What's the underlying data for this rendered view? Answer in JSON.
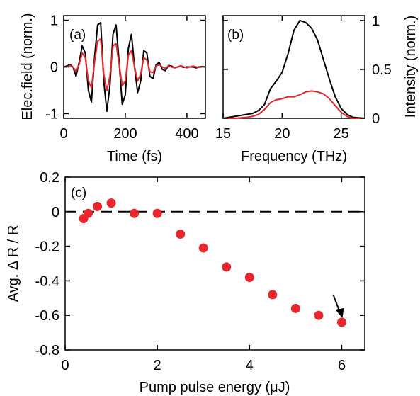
{
  "colors": {
    "black": "#000000",
    "red": "#e8262b",
    "marker": "#e8262b"
  },
  "chart_data": [
    {
      "panel": "(a)",
      "type": "line",
      "xlabel": "Time (fs)",
      "ylabel": "Elec.field (norm.)",
      "xlim": [
        0,
        460
      ],
      "ylim": [
        -1.1,
        1.1
      ],
      "xticks": [
        "0",
        "200",
        "400"
      ],
      "xtick_values": [
        0,
        200,
        400
      ],
      "yticks": [
        "1",
        "0",
        "-1"
      ],
      "ytick_values": [
        1,
        0,
        -1
      ],
      "grid": false,
      "series": [
        {
          "color": "#000000",
          "x": [
            0,
            10,
            20,
            30,
            40,
            50,
            60,
            70,
            80,
            90,
            100,
            110,
            120,
            130,
            140,
            150,
            160,
            170,
            180,
            190,
            200,
            210,
            220,
            230,
            240,
            250,
            260,
            270,
            280,
            290,
            300,
            310,
            320,
            330,
            340,
            350,
            360,
            370,
            380,
            390,
            400,
            410,
            420,
            430,
            440,
            450,
            460
          ],
          "y": [
            0.0,
            0.02,
            0.05,
            0.0,
            -0.2,
            0.1,
            0.45,
            0.3,
            -0.5,
            -0.75,
            0.2,
            0.9,
            0.95,
            -0.3,
            -0.95,
            -0.4,
            0.7,
            0.9,
            0.1,
            -0.8,
            -0.6,
            0.4,
            0.7,
            0.0,
            -0.55,
            -0.3,
            0.35,
            0.3,
            -0.2,
            -0.25,
            0.05,
            0.1,
            -0.05,
            -0.08,
            0.03,
            0.02,
            -0.02,
            0.0,
            0.01,
            -0.01,
            0.0,
            0.0,
            0.0,
            -0.02,
            0.0,
            0.01,
            0.0
          ]
        },
        {
          "color": "#e8262b",
          "x": [
            0,
            10,
            20,
            30,
            40,
            50,
            60,
            70,
            80,
            90,
            100,
            110,
            120,
            130,
            140,
            150,
            160,
            170,
            180,
            190,
            200,
            210,
            220,
            230,
            240,
            250,
            260,
            270,
            280,
            290,
            300,
            310,
            320,
            330,
            340,
            350,
            360,
            370,
            380,
            390,
            400,
            410,
            420,
            430,
            440,
            450,
            460
          ],
          "y": [
            0.0,
            0.0,
            0.03,
            0.0,
            -0.1,
            0.05,
            0.3,
            0.2,
            -0.3,
            -0.45,
            0.1,
            0.55,
            0.6,
            -0.15,
            -0.5,
            -0.2,
            0.45,
            0.5,
            0.05,
            -0.4,
            -0.3,
            0.25,
            0.35,
            0.0,
            -0.3,
            -0.15,
            0.2,
            0.15,
            -0.1,
            -0.12,
            0.02,
            0.05,
            0.0,
            -0.03,
            0.02,
            0.0,
            -0.02,
            0.0,
            0.03,
            0.0,
            -0.02,
            0.0,
            0.02,
            0.0,
            -0.01,
            0.01,
            0.0
          ]
        }
      ]
    },
    {
      "panel": "(b)",
      "type": "line",
      "xlabel": "Frequency (THz)",
      "ylabel": "Intensity (norm.)",
      "xlim": [
        15,
        27
      ],
      "ylim": [
        0,
        1.05
      ],
      "xticks": [
        "15",
        "20",
        "25"
      ],
      "xtick_values": [
        15,
        20,
        25
      ],
      "yticks": [
        "1",
        "0.5",
        "0"
      ],
      "ytick_values": [
        1,
        0.5,
        0
      ],
      "grid": false,
      "series": [
        {
          "color": "#000000",
          "x": [
            15,
            16,
            17,
            17.5,
            18,
            18.5,
            19,
            19.5,
            20,
            20.5,
            21,
            21.5,
            22,
            22.5,
            23,
            23.5,
            24,
            24.5,
            25,
            25.5,
            26,
            27
          ],
          "y": [
            0.0,
            0.02,
            0.04,
            0.05,
            0.08,
            0.14,
            0.3,
            0.38,
            0.47,
            0.66,
            0.9,
            1.0,
            0.98,
            0.92,
            0.8,
            0.6,
            0.4,
            0.22,
            0.1,
            0.04,
            0.01,
            0.0
          ]
        },
        {
          "color": "#e8262b",
          "x": [
            15,
            16,
            17,
            17.5,
            18,
            18.5,
            19,
            19.5,
            20,
            20.5,
            21,
            21.5,
            22,
            22.5,
            23,
            23.5,
            24,
            24.5,
            25,
            25.5,
            26,
            27
          ],
          "y": [
            0.0,
            0.0,
            0.01,
            0.02,
            0.04,
            0.09,
            0.16,
            0.19,
            0.2,
            0.22,
            0.22,
            0.24,
            0.27,
            0.28,
            0.27,
            0.25,
            0.2,
            0.13,
            0.06,
            0.02,
            0.0,
            0.0
          ]
        }
      ]
    },
    {
      "panel": "(c)",
      "type": "scatter",
      "xlabel": "Pump pulse energy (μJ)",
      "ylabel": "Avg. Δ  R / R",
      "xlim": [
        0,
        6.5
      ],
      "ylim": [
        -0.8,
        0.2
      ],
      "xticks": [
        "0",
        "2",
        "4",
        "6"
      ],
      "xtick_values": [
        0,
        2,
        4,
        6
      ],
      "yticks": [
        "0.2",
        "0",
        "-0.2",
        "-0.4",
        "-0.6",
        "-0.8"
      ],
      "ytick_values": [
        0.2,
        0,
        -0.2,
        -0.4,
        -0.6,
        -0.8
      ],
      "grid": false,
      "reference_line_y": 0,
      "arrow_target": [
        6,
        -0.64
      ],
      "series": [
        {
          "color": "#e8262b",
          "x": [
            0.4,
            0.5,
            0.7,
            1.0,
            1.5,
            2.0,
            2.5,
            3.0,
            3.5,
            4.0,
            4.5,
            5.0,
            5.5,
            6.0
          ],
          "y": [
            -0.04,
            -0.01,
            0.03,
            0.05,
            -0.01,
            -0.01,
            -0.13,
            -0.21,
            -0.32,
            -0.38,
            -0.48,
            -0.56,
            -0.6,
            -0.64
          ]
        }
      ]
    }
  ]
}
